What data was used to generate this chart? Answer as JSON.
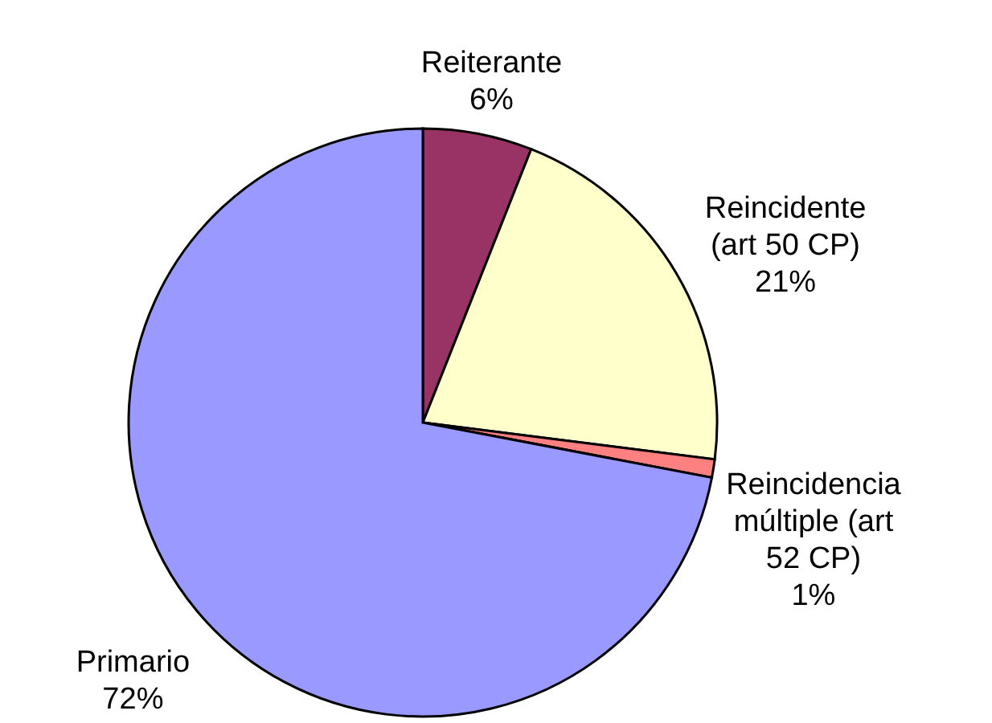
{
  "chart_data": {
    "type": "pie",
    "categories": [
      "Reiterante",
      "Reincidente (art 50 CP)",
      "Reincidencia múltiple (art 52 CP)",
      "Primario"
    ],
    "values": [
      6,
      21,
      1,
      72
    ],
    "colors": [
      "#993366",
      "#ffffcc",
      "#ff8080",
      "#9999ff"
    ],
    "value_labels": [
      "6%",
      "21%",
      "1%",
      "72%"
    ]
  }
}
